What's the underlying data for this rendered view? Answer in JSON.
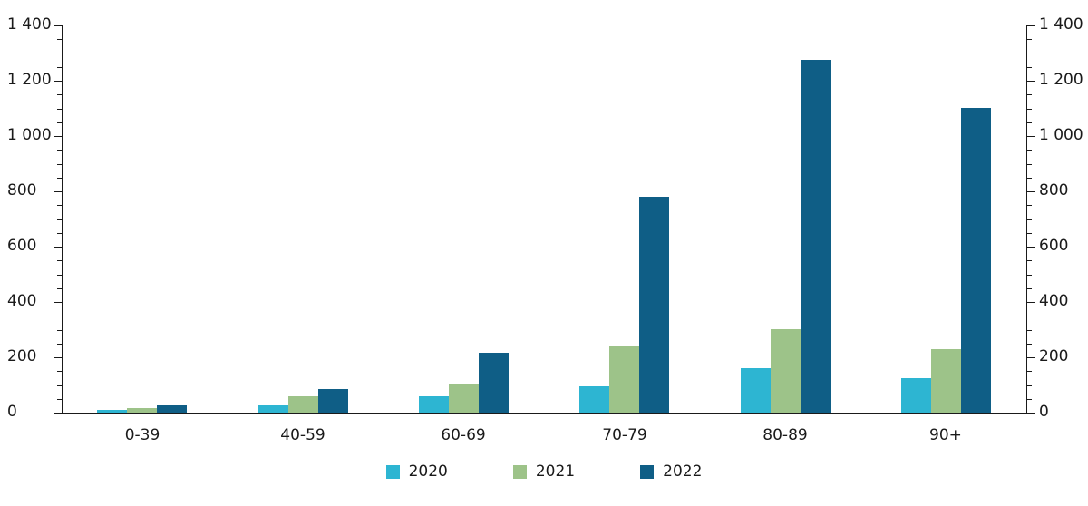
{
  "chart_data": {
    "type": "bar",
    "title": "",
    "xlabel": "",
    "ylabel": "",
    "categories": [
      "0-39",
      "40-59",
      "60-69",
      "70-79",
      "80-89",
      "90+"
    ],
    "series": [
      {
        "name": "2020",
        "color": "#2db5d2",
        "values": [
          10,
          25,
          60,
          95,
          160,
          125
        ]
      },
      {
        "name": "2021",
        "color": "#9dc389",
        "values": [
          15,
          60,
          100,
          240,
          300,
          230
        ]
      },
      {
        "name": "2022",
        "color": "#0f5e86",
        "values": [
          25,
          85,
          215,
          780,
          1275,
          1100
        ]
      }
    ],
    "ylim": [
      0,
      1400
    ],
    "ytick_step": 200,
    "minor_tick_step": 50,
    "yticks": [
      "0",
      "200",
      "400",
      "600",
      "800",
      "1 000",
      "1 200",
      "1 400"
    ],
    "y_axis_sides": [
      "left",
      "right"
    ],
    "grid": false,
    "legend_position": "bottom",
    "axis_color": "#1a1a1a",
    "background_color": "#ffffff"
  }
}
